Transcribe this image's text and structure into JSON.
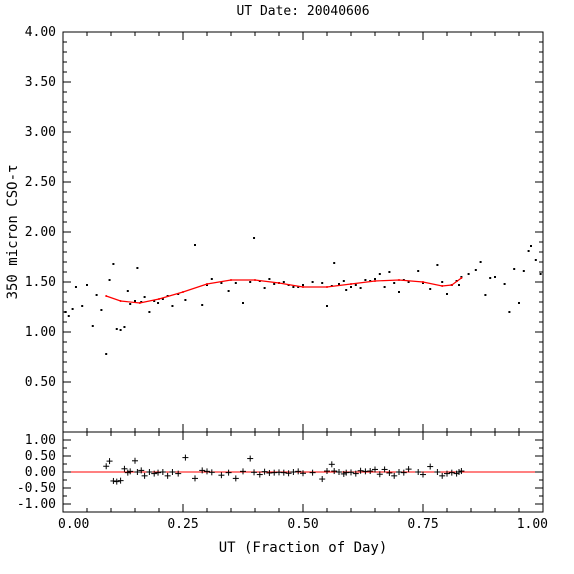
{
  "chart_data": [
    {
      "type": "scatter",
      "panel": "main",
      "title": "UT Date: 20040606",
      "ylabel": "350 micron CSO-τ",
      "xlim": [
        0.0,
        1.0
      ],
      "ylim": [
        0.0,
        4.0
      ],
      "y_ticks": [
        "4.00",
        "3.50",
        "3.00",
        "2.50",
        "2.00",
        "1.50",
        "1.00",
        "0.50"
      ],
      "y_tick_values": [
        4.0,
        3.5,
        3.0,
        2.5,
        2.0,
        1.5,
        1.0,
        0.5
      ],
      "colors": {
        "points": "#000000",
        "fit": "#ff0000"
      },
      "series": [
        {
          "marker": "dot",
          "x": [
            0.005,
            0.012,
            0.02,
            0.027,
            0.04,
            0.05,
            0.062,
            0.07,
            0.08,
            0.09,
            0.097,
            0.105,
            0.112,
            0.12,
            0.128,
            0.135,
            0.14,
            0.15,
            0.155,
            0.163,
            0.17,
            0.18,
            0.19,
            0.198,
            0.208,
            0.218,
            0.228,
            0.24,
            0.255,
            0.275,
            0.29,
            0.3,
            0.31,
            0.33,
            0.345,
            0.36,
            0.375,
            0.39,
            0.398,
            0.41,
            0.42,
            0.43,
            0.44,
            0.45,
            0.46,
            0.47,
            0.48,
            0.49,
            0.5,
            0.52,
            0.54,
            0.55,
            0.56,
            0.565,
            0.575,
            0.585,
            0.59,
            0.6,
            0.61,
            0.62,
            0.63,
            0.64,
            0.65,
            0.66,
            0.67,
            0.68,
            0.69,
            0.7,
            0.71,
            0.72,
            0.74,
            0.75,
            0.765,
            0.78,
            0.79,
            0.8,
            0.81,
            0.82,
            0.825,
            0.83,
            0.845,
            0.86,
            0.87,
            0.88,
            0.89,
            0.9,
            0.92,
            0.93,
            0.94,
            0.95,
            0.96,
            0.97,
            0.975,
            0.985,
            0.995
          ],
          "y": [
            1.2,
            1.16,
            1.23,
            1.45,
            1.26,
            1.47,
            1.06,
            1.37,
            1.22,
            0.78,
            1.52,
            1.68,
            1.03,
            1.02,
            1.05,
            1.41,
            1.28,
            1.31,
            1.64,
            1.3,
            1.35,
            1.2,
            1.31,
            1.29,
            1.33,
            1.36,
            1.26,
            1.38,
            1.32,
            1.87,
            1.27,
            1.47,
            1.53,
            1.49,
            1.41,
            1.49,
            1.29,
            1.5,
            1.94,
            1.51,
            1.44,
            1.53,
            1.48,
            1.49,
            1.5,
            1.47,
            1.45,
            1.45,
            1.47,
            1.5,
            1.49,
            1.26,
            1.46,
            1.69,
            1.48,
            1.51,
            1.42,
            1.45,
            1.47,
            1.44,
            1.52,
            1.51,
            1.53,
            1.58,
            1.45,
            1.6,
            1.49,
            1.4,
            1.52,
            1.5,
            1.61,
            1.49,
            1.43,
            1.67,
            1.5,
            1.38,
            1.47,
            1.51,
            1.47,
            1.55,
            1.58,
            1.62,
            1.7,
            1.37,
            1.54,
            1.55,
            1.48,
            1.2,
            1.63,
            1.29,
            1.61,
            1.81,
            1.86,
            1.72,
            1.58
          ]
        },
        {
          "marker": "fit-line",
          "x": [
            0.09,
            0.12,
            0.16,
            0.2,
            0.25,
            0.3,
            0.35,
            0.4,
            0.45,
            0.5,
            0.55,
            0.6,
            0.65,
            0.7,
            0.75,
            0.79,
            0.81,
            0.83
          ],
          "y": [
            1.36,
            1.31,
            1.29,
            1.33,
            1.4,
            1.48,
            1.52,
            1.52,
            1.49,
            1.45,
            1.45,
            1.48,
            1.51,
            1.52,
            1.5,
            1.46,
            1.47,
            1.54
          ]
        }
      ]
    },
    {
      "type": "scatter",
      "panel": "residual",
      "xlabel": "UT (Fraction of Day)",
      "xlim": [
        0.0,
        1.0
      ],
      "ylim": [
        -1.25,
        1.25
      ],
      "x_ticks": [
        "0.00",
        "0.25",
        "0.50",
        "0.75",
        "1.00"
      ],
      "x_tick_values": [
        0.0,
        0.25,
        0.5,
        0.75,
        1.0
      ],
      "y_ticks": [
        "1.00",
        "0.50",
        "0.00",
        "-0.50",
        "-1.00"
      ],
      "y_tick_values": [
        1.0,
        0.5,
        0.0,
        -0.5,
        -1.0
      ],
      "zero_line_color": "#ff0000",
      "series": [
        {
          "marker": "plus",
          "x": [
            0.09,
            0.097,
            0.105,
            0.112,
            0.12,
            0.128,
            0.135,
            0.14,
            0.15,
            0.155,
            0.163,
            0.17,
            0.18,
            0.19,
            0.198,
            0.208,
            0.218,
            0.228,
            0.24,
            0.255,
            0.275,
            0.29,
            0.3,
            0.31,
            0.33,
            0.345,
            0.36,
            0.375,
            0.39,
            0.398,
            0.41,
            0.42,
            0.43,
            0.44,
            0.45,
            0.46,
            0.47,
            0.48,
            0.49,
            0.5,
            0.52,
            0.54,
            0.55,
            0.56,
            0.565,
            0.575,
            0.585,
            0.59,
            0.6,
            0.61,
            0.62,
            0.63,
            0.64,
            0.65,
            0.66,
            0.67,
            0.68,
            0.69,
            0.7,
            0.71,
            0.72,
            0.74,
            0.75,
            0.765,
            0.78,
            0.79,
            0.8,
            0.81,
            0.82,
            0.825,
            0.83
          ],
          "y": [
            0.18,
            0.34,
            -0.28,
            -0.3,
            -0.27,
            0.1,
            -0.02,
            0.02,
            0.35,
            0.0,
            0.05,
            -0.12,
            0.0,
            -0.05,
            -0.02,
            0.0,
            -0.12,
            0.0,
            -0.05,
            0.45,
            -0.2,
            0.05,
            0.02,
            -0.01,
            -0.1,
            -0.02,
            -0.2,
            0.02,
            0.42,
            -0.01,
            -0.08,
            0.01,
            -0.03,
            -0.02,
            -0.01,
            -0.02,
            -0.04,
            0.0,
            0.02,
            -0.04,
            -0.02,
            -0.22,
            0.03,
            0.24,
            0.03,
            0.0,
            -0.06,
            -0.02,
            -0.01,
            -0.05,
            0.04,
            0.02,
            0.03,
            0.08,
            -0.07,
            0.08,
            -0.03,
            -0.12,
            0.0,
            -0.02,
            0.09,
            0.0,
            -0.08,
            0.17,
            0.0,
            -0.12,
            -0.05,
            -0.02,
            -0.05,
            0.0,
            0.03
          ]
        }
      ]
    }
  ]
}
